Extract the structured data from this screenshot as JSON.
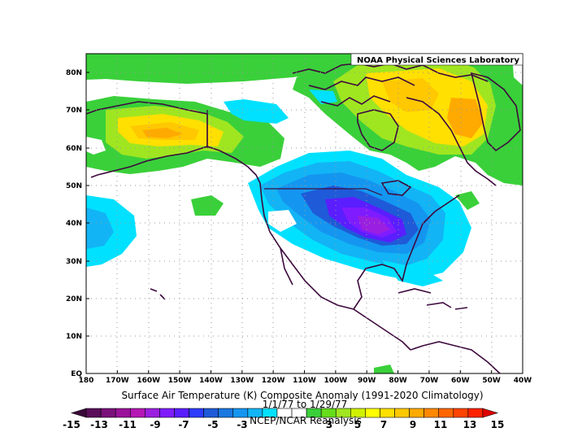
{
  "credit": "NOAA Physical Sciences Laboratory",
  "title": "Surface Air Temperature (K) Composite Anomaly (1991-2020 Climatology)",
  "date_range": "1/1/77  to 1/29/77",
  "source": "NCEP/NCAR Reanalysis",
  "lat_ticks": [
    "80N",
    "70N",
    "60N",
    "50N",
    "40N",
    "30N",
    "20N",
    "10N",
    "EQ"
  ],
  "lon_ticks": [
    "180",
    "170W",
    "160W",
    "150W",
    "140W",
    "130W",
    "120W",
    "110W",
    "100W",
    "90W",
    "80W",
    "70W",
    "60W",
    "50W",
    "40W"
  ],
  "colorbar": {
    "labels": [
      "-15",
      "-13",
      "-11",
      "-9",
      "-7",
      "-5",
      "-3",
      "3",
      "5",
      "7",
      "9",
      "11",
      "13",
      "15"
    ],
    "colors": [
      "#3a0a3a",
      "#5a0e5a",
      "#7a117a",
      "#9a139a",
      "#b517b5",
      "#9b1fe0",
      "#7f1cff",
      "#5a1eff",
      "#2e3cff",
      "#1f5ad8",
      "#1a78e0",
      "#1496f0",
      "#12b4f5",
      "#00e1ff",
      "#ffffff",
      "#ffffff",
      "#3ad03a",
      "#66dd1a",
      "#a0e620",
      "#d0f000",
      "#ffff00",
      "#ffe000",
      "#ffc800",
      "#ffaa00",
      "#ff8800",
      "#ff6600",
      "#ff4400",
      "#ff2200",
      "#e00000"
    ]
  }
}
